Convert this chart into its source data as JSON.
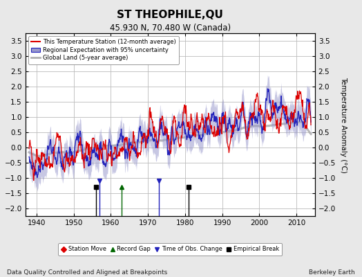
{
  "title": "ST THEOPHILE,QU",
  "subtitle": "45.930 N, 70.480 W (Canada)",
  "ylabel": "Temperature Anomaly (°C)",
  "xlabel_note": "Data Quality Controlled and Aligned at Breakpoints",
  "credit": "Berkeley Earth",
  "xlim": [
    1937,
    2015
  ],
  "ylim": [
    -2.25,
    3.75
  ],
  "yticks": [
    -2,
    -1.5,
    -1,
    -0.5,
    0,
    0.5,
    1,
    1.5,
    2,
    2.5,
    3,
    3.5
  ],
  "xticks": [
    1940,
    1950,
    1960,
    1970,
    1980,
    1990,
    2000,
    2010
  ],
  "bg_color": "#e8e8e8",
  "plot_bg_color": "#ffffff",
  "grid_color": "#bbbbbb",
  "red_color": "#dd0000",
  "blue_color": "#2222bb",
  "blue_fill_color": "#9999cc",
  "gray_color": "#b0b0b0",
  "event_markers": {
    "empirical_break": [
      1956,
      1981
    ],
    "record_gap": [
      1963
    ],
    "time_of_obs": [
      1957,
      1973
    ],
    "station_move": []
  }
}
